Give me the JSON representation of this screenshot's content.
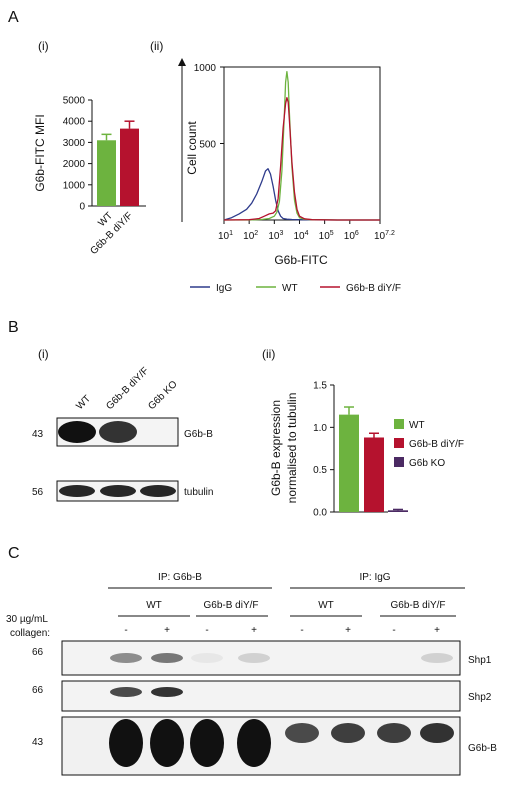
{
  "panels": {
    "A": {
      "letter": "A",
      "i": {
        "label": "(i)",
        "chart_data": {
          "type": "bar",
          "categories": [
            "WT",
            "G6b-B diY/F"
          ],
          "values": [
            3100,
            3650
          ],
          "errors": [
            280,
            350
          ],
          "ylabel": "G6b-FITC MFI",
          "ylim": [
            0,
            5000
          ],
          "yticks": [
            "0",
            "1000",
            "2000",
            "3000",
            "4000",
            "5000"
          ],
          "colors": [
            "#6db33f",
            "#b5122e"
          ]
        }
      },
      "ii": {
        "label": "(ii)",
        "chart_data": {
          "type": "line",
          "ylabel": "Cell count",
          "xlabel": "G6b-FITC",
          "ylim": [
            0,
            1000
          ],
          "yticks": [
            "500",
            "1000"
          ],
          "xticks": [
            "10",
            "10",
            "10",
            "10",
            "10",
            "10",
            "10"
          ],
          "xtick_exps": [
            "1",
            "2",
            "3",
            "4",
            "5",
            "6",
            "7.2"
          ],
          "xlog_range": [
            1,
            7.2
          ],
          "series": [
            {
              "name": "IgG",
              "color": "#2f3c8c",
              "x": [
                1.0,
                1.3,
                1.6,
                1.9,
                2.1,
                2.3,
                2.5,
                2.65,
                2.75,
                2.85,
                2.95,
                3.05,
                3.15,
                3.25,
                3.35,
                3.5,
                3.7,
                4.0,
                4.5,
                5.5,
                7.2
              ],
              "y": [
                0,
                15,
                40,
                70,
                110,
                170,
                250,
                320,
                335,
                300,
                220,
                130,
                60,
                25,
                10,
                5,
                3,
                2,
                1,
                0,
                0
              ]
            },
            {
              "name": "WT",
              "color": "#6db33f",
              "x": [
                1.0,
                2.0,
                2.5,
                2.8,
                3.0,
                3.1,
                3.2,
                3.3,
                3.4,
                3.45,
                3.5,
                3.55,
                3.6,
                3.7,
                3.8,
                3.9,
                4.0,
                4.2,
                4.5,
                5.5,
                7.2
              ],
              "y": [
                0,
                0,
                3,
                10,
                25,
                50,
                120,
                320,
                700,
                900,
                970,
                900,
                700,
                350,
                130,
                45,
                15,
                5,
                2,
                0,
                0
              ]
            },
            {
              "name": "G6b-B diY/F",
              "color": "#b5122e",
              "x": [
                1.0,
                2.0,
                2.4,
                2.6,
                2.8,
                2.95,
                3.05,
                3.15,
                3.25,
                3.35,
                3.45,
                3.5,
                3.55,
                3.6,
                3.7,
                3.8,
                3.9,
                4.0,
                4.2,
                4.5,
                5.5,
                7.2
              ],
              "y": [
                0,
                2,
                10,
                25,
                40,
                45,
                60,
                140,
                350,
                600,
                760,
                800,
                770,
                650,
                380,
                180,
                70,
                25,
                8,
                2,
                0,
                0
              ]
            }
          ]
        }
      }
    },
    "B": {
      "letter": "B",
      "i": {
        "label": "(i)",
        "lanes": [
          "WT",
          "G6b-B diY/F",
          "G6b KO"
        ],
        "blots": [
          {
            "marker": "43",
            "label": "G6b-B",
            "intensity": [
              1.0,
              0.85,
              0.0
            ]
          },
          {
            "marker": "56",
            "label": "tubulin",
            "intensity": [
              0.9,
              0.9,
              0.9
            ]
          }
        ]
      },
      "ii": {
        "label": "(ii)",
        "chart_data": {
          "type": "bar",
          "categories": [
            "WT",
            "G6b-B diY/F",
            "G6b KO"
          ],
          "values": [
            1.15,
            0.88,
            0.02
          ],
          "errors": [
            0.09,
            0.05,
            0.01
          ],
          "ylabel": "G6b-B expression\nnormalised to tubulin",
          "ylabel_lines": [
            "G6b-B expression",
            "normalised to tubulin"
          ],
          "ylim": [
            0,
            1.5
          ],
          "yticks": [
            "0.0",
            "0.5",
            "1.0",
            "1.5"
          ],
          "colors": [
            "#6db33f",
            "#b5122e",
            "#4b2a63"
          ]
        }
      }
    },
    "C": {
      "letter": "C",
      "ip_groups": [
        "IP: G6b-B",
        "IP: IgG"
      ],
      "genotypes": [
        "WT",
        "G6b-B diY/F",
        "WT",
        "G6b-B diY/F"
      ],
      "treatment_label_1": "30 µg/mL",
      "treatment_label_2": "collagen:",
      "treatment": [
        "-",
        "+",
        "-",
        "+",
        "-",
        "+",
        "-",
        "+"
      ],
      "blots": [
        {
          "marker": "66",
          "label": "Shp1",
          "intensity": [
            0.45,
            0.55,
            0.05,
            0.15,
            0.0,
            0.0,
            0.0,
            0.15
          ]
        },
        {
          "marker": "66",
          "label": "Shp2",
          "intensity": [
            0.75,
            0.85,
            0.0,
            0.0,
            0.0,
            0.0,
            0.0,
            0.0
          ]
        },
        {
          "marker": "43",
          "label": "G6b-B",
          "intensity": [
            1.0,
            1.0,
            1.0,
            1.0,
            0.75,
            0.8,
            0.8,
            0.85
          ]
        }
      ]
    }
  },
  "colors": {
    "green": "#6db33f",
    "red": "#b5122e",
    "purple": "#4b2a63",
    "blue": "#2f3c8c"
  }
}
